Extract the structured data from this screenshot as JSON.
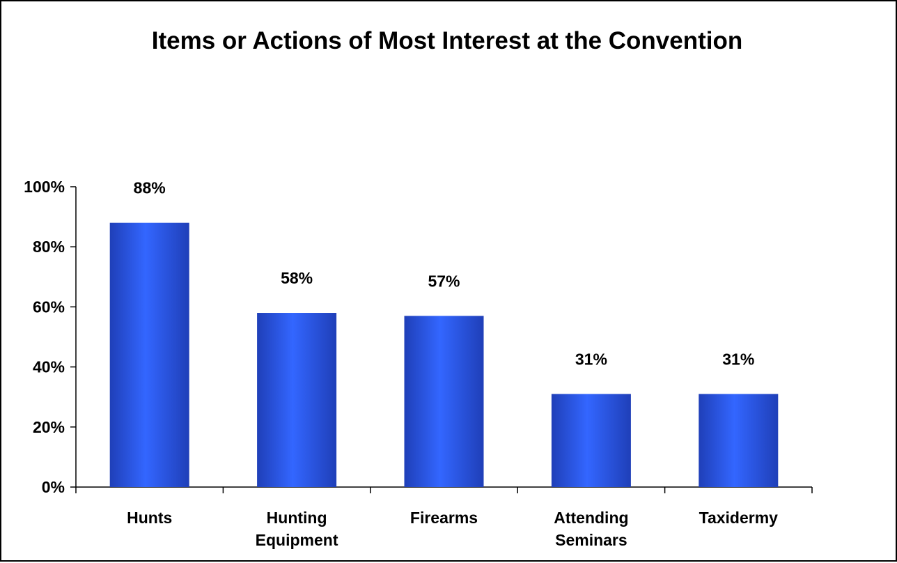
{
  "chart_data": {
    "type": "bar",
    "title": "Items or Actions of Most Interest at the Convention",
    "categories": [
      [
        "Hunts"
      ],
      [
        "Hunting",
        "Equipment"
      ],
      [
        "Firearms"
      ],
      [
        "Attending",
        "Seminars"
      ],
      [
        "Taxidermy"
      ]
    ],
    "values": [
      88,
      58,
      57,
      31,
      31
    ],
    "data_labels": [
      "88%",
      "58%",
      "57%",
      "31%",
      "31%"
    ],
    "y_ticks": [
      0,
      20,
      40,
      60,
      80,
      100
    ],
    "y_tick_labels": [
      "0%",
      "20%",
      "40%",
      "60%",
      "80%",
      "100%"
    ],
    "ylim": [
      0,
      100
    ],
    "grid": false,
    "legend": "none",
    "bar_color": "#3366ff",
    "bar_color_dark": "#1f3fb8"
  }
}
